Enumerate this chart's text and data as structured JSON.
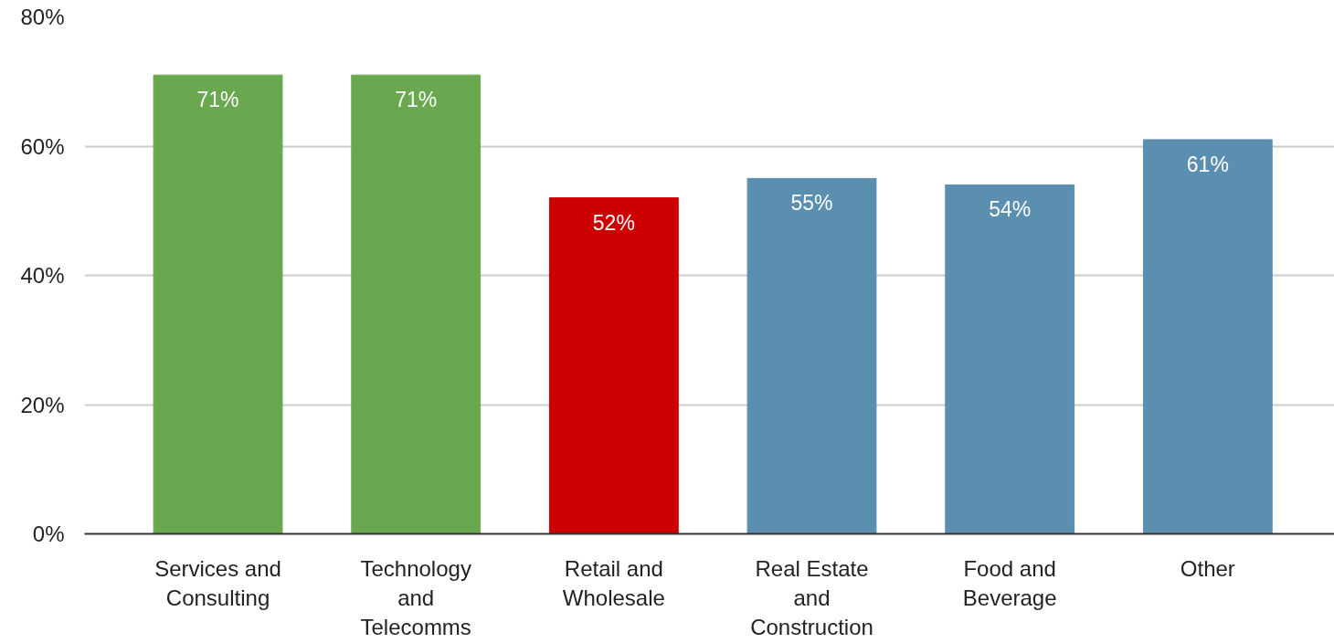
{
  "chart_data": {
    "type": "bar",
    "categories": [
      "Services and Consulting",
      "Technology and Telecomms",
      "Retail and Wholesale",
      "Real Estate and Construction",
      "Food and Beverage",
      "Other"
    ],
    "values": [
      71,
      71,
      52,
      55,
      54,
      61
    ],
    "colors": [
      "#6aa84f",
      "#6aa84f",
      "#cc0000",
      "#5b8fb0",
      "#5b8fb0",
      "#5b8fb0"
    ],
    "value_labels": [
      "71%",
      "71%",
      "52%",
      "55%",
      "54%",
      "61%"
    ],
    "ylim": [
      0,
      80
    ],
    "yticks": [
      {
        "value": 0,
        "label": "0%"
      },
      {
        "value": 20,
        "label": "20%"
      },
      {
        "value": 40,
        "label": "40%"
      },
      {
        "value": 60,
        "label": "60%"
      },
      {
        "value": 80,
        "label": "80%"
      }
    ],
    "grid": "y"
  }
}
